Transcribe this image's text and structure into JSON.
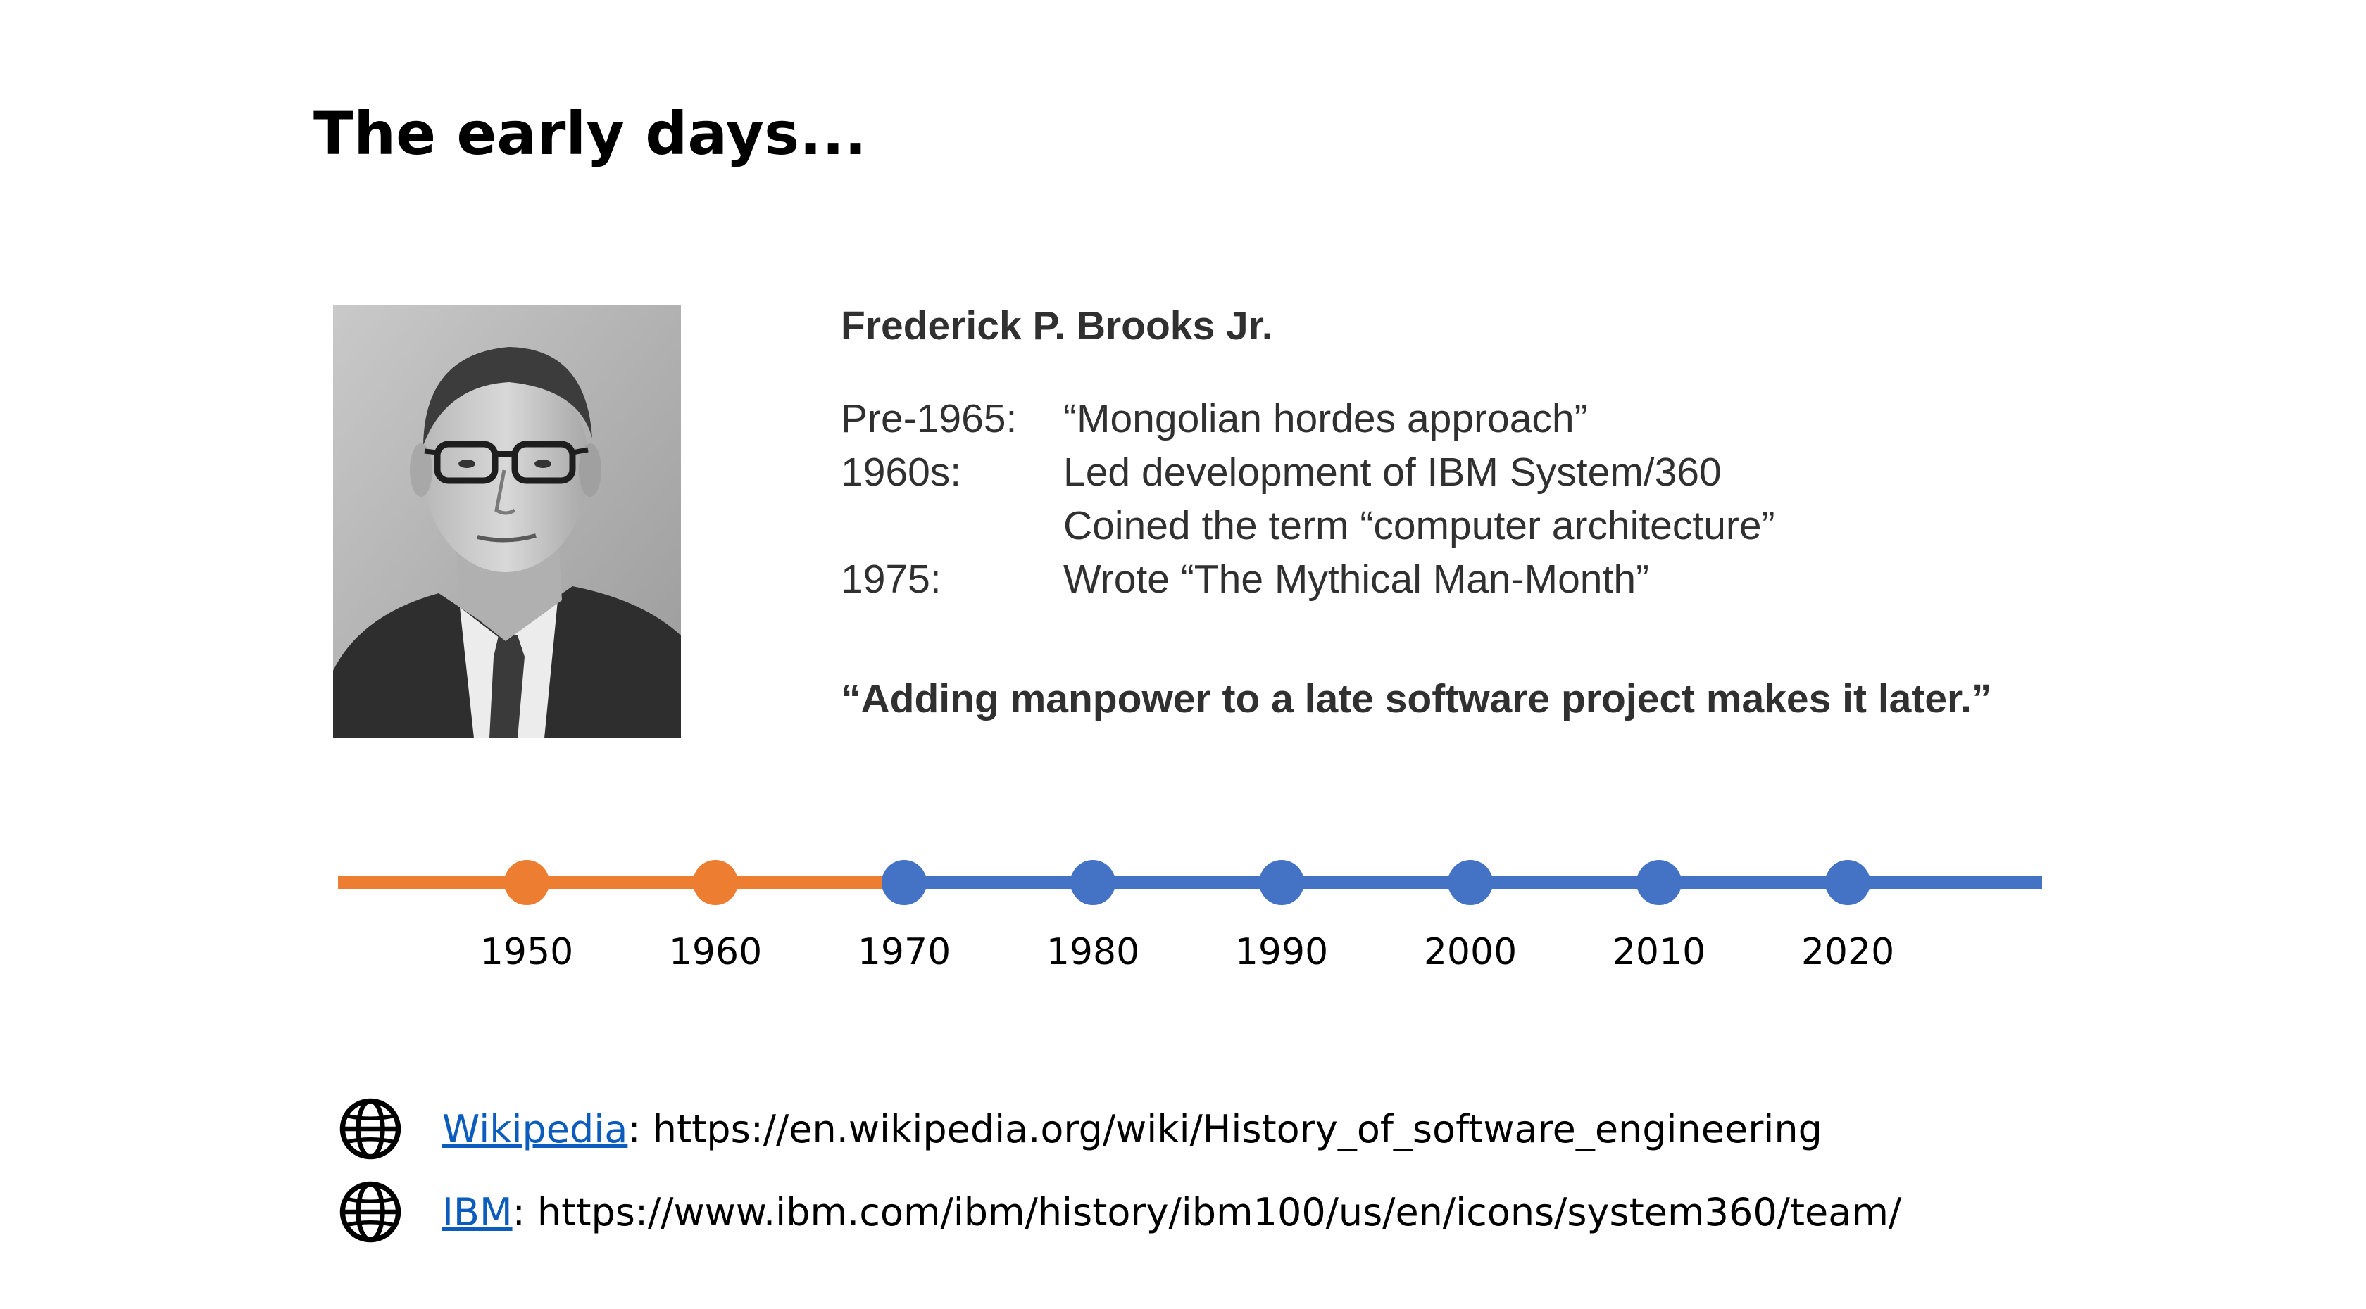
{
  "slide": {
    "title": "The early days..."
  },
  "person": {
    "name": "Frederick P. Brooks Jr.",
    "bio": [
      {
        "label": "Pre-1965:",
        "text": "“Mongolian hordes approach”"
      },
      {
        "label": "1960s:",
        "text": "Led development of IBM System/360"
      },
      {
        "label": "",
        "text": "Coined the term “computer architecture”"
      },
      {
        "label": "1975:",
        "text": "Wrote “The Mythical Man-Month”"
      }
    ],
    "quote": "“Adding manpower to a late software project makes it later.”"
  },
  "timeline": {
    "years": [
      "1950",
      "1960",
      "1970",
      "1980",
      "1990",
      "2000",
      "2010",
      "2020"
    ],
    "highlighted_years": [
      "1950",
      "1960"
    ],
    "colors": {
      "highlight": "#ed7d31",
      "base": "#4472c4"
    }
  },
  "links": [
    {
      "icon": "globe-icon",
      "label": "Wikipedia",
      "url": "https://en.wikipedia.org/wiki/History_of_software_engineering"
    },
    {
      "icon": "globe-icon",
      "label": "IBM",
      "url": "https://www.ibm.com/ibm/history/ibm100/us/en/icons/system360/team/"
    }
  ]
}
